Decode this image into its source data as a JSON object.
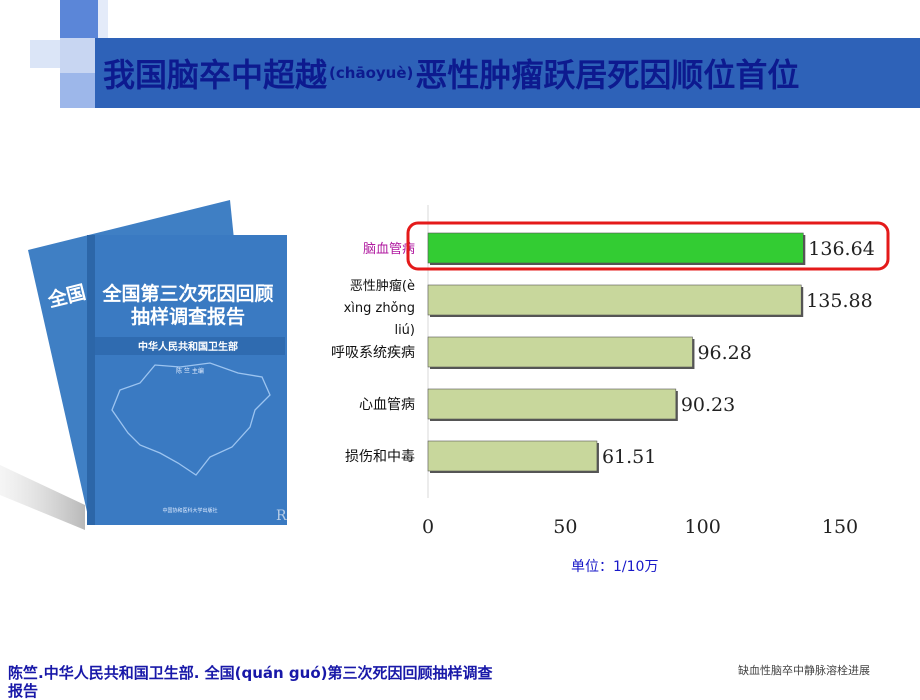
{
  "title": {
    "main": "我国脑卒中超越",
    "pinyin": "(chāoyuè)",
    "tail": "恶性肿瘤跃居死因顺位首位"
  },
  "book": {
    "title_line1": "全国第三次死因回顾",
    "title_line2": "抽样调查报告",
    "publisher": "中华人民共和国卫生部",
    "editor": "陈 竺 主编",
    "back_title_fragment": "全国",
    "corner_letter": "R",
    "press": "中国协和医科大学出版社"
  },
  "chart_data": {
    "type": "bar",
    "orientation": "horizontal",
    "categories": [
      "脑血管病",
      "恶性肿瘤(è xìng zhǒng liú)",
      "呼吸系统疾病",
      "心血管病",
      "损伤和中毒"
    ],
    "values": [
      136.64,
      135.88,
      96.28,
      90.23,
      61.51
    ],
    "value_labels": [
      "136.64",
      "135.88",
      "96.28",
      "90.23",
      "61.51"
    ],
    "xticks": [
      0,
      50,
      100,
      150
    ],
    "xlim": [
      0,
      150
    ],
    "highlight_index": 0,
    "colors": {
      "highlight_bar": "#33cc33",
      "bar": "#c8d79c",
      "highlight_box": "#e41a1a",
      "highlight_label": "#b01aa0"
    },
    "grid": false
  },
  "unit_label": "单位：1/10万",
  "citation": {
    "part1": "陈竺.中华人民共和国卫生部.",
    "part2": "全国(quán guó)第三次死因回顾抽样调查",
    "part3": "报告"
  },
  "footer_note": "缺血性脑卒中静脉溶栓进展",
  "colors": {
    "title_bar": "#2e62b8",
    "title_text": "#0d1a8f",
    "deco_square": "#4a7fd6"
  }
}
